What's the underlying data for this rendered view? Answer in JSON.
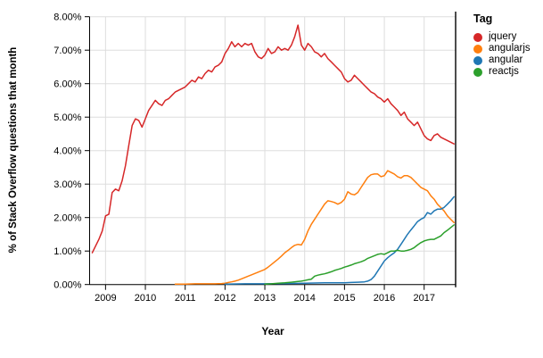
{
  "chart_data": {
    "type": "line",
    "title": "",
    "xlabel": "Year",
    "ylabel": "% of Stack Overflow questions that month",
    "legend_title": "Tag",
    "legend_position": "right",
    "grid": true,
    "background": "#ffffff",
    "grid_color": "#dddddd",
    "axis_color": "#000000",
    "x_domain": [
      2008.6,
      2017.79
    ],
    "y_domain": [
      0,
      8
    ],
    "x_ticks": [
      {
        "v": 2009,
        "label": "2009"
      },
      {
        "v": 2010,
        "label": "2010"
      },
      {
        "v": 2011,
        "label": "2011"
      },
      {
        "v": 2012,
        "label": "2012"
      },
      {
        "v": 2013,
        "label": "2013"
      },
      {
        "v": 2014,
        "label": "2014"
      },
      {
        "v": 2015,
        "label": "2015"
      },
      {
        "v": 2016,
        "label": "2016"
      },
      {
        "v": 2017,
        "label": "2017"
      }
    ],
    "y_ticks": [
      {
        "v": 0,
        "label": "0.00%"
      },
      {
        "v": 1,
        "label": "1.00%"
      },
      {
        "v": 2,
        "label": "2.00%"
      },
      {
        "v": 3,
        "label": "3.00%"
      },
      {
        "v": 4,
        "label": "4.00%"
      },
      {
        "v": 5,
        "label": "5.00%"
      },
      {
        "v": 6,
        "label": "6.00%"
      },
      {
        "v": 7,
        "label": "7.00%"
      },
      {
        "v": 8,
        "label": "8.00%"
      }
    ],
    "series": [
      {
        "name": "jquery",
        "color": "#d62728",
        "points": [
          [
            2008.667,
            0.95
          ],
          [
            2008.75,
            1.15
          ],
          [
            2008.833,
            1.35
          ],
          [
            2008.917,
            1.6
          ],
          [
            2009.0,
            2.05
          ],
          [
            2009.083,
            2.1
          ],
          [
            2009.167,
            2.75
          ],
          [
            2009.25,
            2.85
          ],
          [
            2009.333,
            2.8
          ],
          [
            2009.417,
            3.1
          ],
          [
            2009.5,
            3.55
          ],
          [
            2009.583,
            4.15
          ],
          [
            2009.667,
            4.75
          ],
          [
            2009.75,
            4.95
          ],
          [
            2009.833,
            4.9
          ],
          [
            2009.917,
            4.7
          ],
          [
            2010.0,
            4.95
          ],
          [
            2010.083,
            5.2
          ],
          [
            2010.167,
            5.35
          ],
          [
            2010.25,
            5.5
          ],
          [
            2010.333,
            5.4
          ],
          [
            2010.417,
            5.35
          ],
          [
            2010.5,
            5.5
          ],
          [
            2010.583,
            5.55
          ],
          [
            2010.667,
            5.65
          ],
          [
            2010.75,
            5.75
          ],
          [
            2010.833,
            5.8
          ],
          [
            2010.917,
            5.85
          ],
          [
            2011.0,
            5.9
          ],
          [
            2011.083,
            6.0
          ],
          [
            2011.167,
            6.1
          ],
          [
            2011.25,
            6.05
          ],
          [
            2011.333,
            6.2
          ],
          [
            2011.417,
            6.15
          ],
          [
            2011.5,
            6.3
          ],
          [
            2011.583,
            6.4
          ],
          [
            2011.667,
            6.35
          ],
          [
            2011.75,
            6.5
          ],
          [
            2011.833,
            6.55
          ],
          [
            2011.917,
            6.65
          ],
          [
            2012.0,
            6.9
          ],
          [
            2012.083,
            7.05
          ],
          [
            2012.167,
            7.25
          ],
          [
            2012.25,
            7.1
          ],
          [
            2012.333,
            7.2
          ],
          [
            2012.417,
            7.1
          ],
          [
            2012.5,
            7.2
          ],
          [
            2012.583,
            7.15
          ],
          [
            2012.667,
            7.2
          ],
          [
            2012.75,
            6.95
          ],
          [
            2012.833,
            6.8
          ],
          [
            2012.917,
            6.75
          ],
          [
            2013.0,
            6.85
          ],
          [
            2013.083,
            7.05
          ],
          [
            2013.167,
            6.9
          ],
          [
            2013.25,
            6.95
          ],
          [
            2013.333,
            7.1
          ],
          [
            2013.417,
            7.0
          ],
          [
            2013.5,
            7.05
          ],
          [
            2013.583,
            7.0
          ],
          [
            2013.667,
            7.15
          ],
          [
            2013.75,
            7.4
          ],
          [
            2013.833,
            7.75
          ],
          [
            2013.917,
            7.15
          ],
          [
            2014.0,
            7.0
          ],
          [
            2014.083,
            7.2
          ],
          [
            2014.167,
            7.1
          ],
          [
            2014.25,
            6.95
          ],
          [
            2014.333,
            6.9
          ],
          [
            2014.417,
            6.8
          ],
          [
            2014.5,
            6.9
          ],
          [
            2014.583,
            6.75
          ],
          [
            2014.667,
            6.65
          ],
          [
            2014.75,
            6.55
          ],
          [
            2014.833,
            6.45
          ],
          [
            2014.917,
            6.35
          ],
          [
            2015.0,
            6.15
          ],
          [
            2015.083,
            6.05
          ],
          [
            2015.167,
            6.1
          ],
          [
            2015.25,
            6.25
          ],
          [
            2015.333,
            6.15
          ],
          [
            2015.417,
            6.05
          ],
          [
            2015.5,
            5.95
          ],
          [
            2015.583,
            5.85
          ],
          [
            2015.667,
            5.75
          ],
          [
            2015.75,
            5.7
          ],
          [
            2015.833,
            5.6
          ],
          [
            2015.917,
            5.55
          ],
          [
            2016.0,
            5.45
          ],
          [
            2016.083,
            5.55
          ],
          [
            2016.167,
            5.4
          ],
          [
            2016.25,
            5.3
          ],
          [
            2016.333,
            5.2
          ],
          [
            2016.417,
            5.05
          ],
          [
            2016.5,
            5.15
          ],
          [
            2016.583,
            4.95
          ],
          [
            2016.667,
            4.85
          ],
          [
            2016.75,
            4.75
          ],
          [
            2016.833,
            4.85
          ],
          [
            2016.917,
            4.65
          ],
          [
            2017.0,
            4.45
          ],
          [
            2017.083,
            4.35
          ],
          [
            2017.167,
            4.3
          ],
          [
            2017.25,
            4.45
          ],
          [
            2017.333,
            4.5
          ],
          [
            2017.417,
            4.4
          ],
          [
            2017.5,
            4.35
          ],
          [
            2017.583,
            4.3
          ],
          [
            2017.667,
            4.25
          ],
          [
            2017.75,
            4.2
          ]
        ]
      },
      {
        "name": "angularjs",
        "color": "#ff7f0e",
        "points": [
          [
            2010.75,
            0.01
          ],
          [
            2011.0,
            0.01
          ],
          [
            2011.25,
            0.02
          ],
          [
            2011.5,
            0.02
          ],
          [
            2011.75,
            0.02
          ],
          [
            2011.917,
            0.03
          ],
          [
            2012.0,
            0.04
          ],
          [
            2012.083,
            0.06
          ],
          [
            2012.167,
            0.08
          ],
          [
            2012.25,
            0.1
          ],
          [
            2012.333,
            0.13
          ],
          [
            2012.417,
            0.17
          ],
          [
            2012.5,
            0.21
          ],
          [
            2012.583,
            0.25
          ],
          [
            2012.667,
            0.29
          ],
          [
            2012.75,
            0.33
          ],
          [
            2012.833,
            0.37
          ],
          [
            2012.917,
            0.41
          ],
          [
            2013.0,
            0.45
          ],
          [
            2013.083,
            0.52
          ],
          [
            2013.167,
            0.6
          ],
          [
            2013.25,
            0.68
          ],
          [
            2013.333,
            0.76
          ],
          [
            2013.417,
            0.85
          ],
          [
            2013.5,
            0.95
          ],
          [
            2013.583,
            1.02
          ],
          [
            2013.667,
            1.1
          ],
          [
            2013.75,
            1.17
          ],
          [
            2013.833,
            1.2
          ],
          [
            2013.917,
            1.18
          ],
          [
            2014.0,
            1.35
          ],
          [
            2014.083,
            1.6
          ],
          [
            2014.167,
            1.8
          ],
          [
            2014.25,
            1.95
          ],
          [
            2014.333,
            2.1
          ],
          [
            2014.417,
            2.25
          ],
          [
            2014.5,
            2.4
          ],
          [
            2014.583,
            2.5
          ],
          [
            2014.667,
            2.48
          ],
          [
            2014.75,
            2.45
          ],
          [
            2014.833,
            2.4
          ],
          [
            2014.917,
            2.45
          ],
          [
            2015.0,
            2.55
          ],
          [
            2015.083,
            2.77
          ],
          [
            2015.167,
            2.7
          ],
          [
            2015.25,
            2.68
          ],
          [
            2015.333,
            2.75
          ],
          [
            2015.417,
            2.9
          ],
          [
            2015.5,
            3.05
          ],
          [
            2015.583,
            3.2
          ],
          [
            2015.667,
            3.28
          ],
          [
            2015.75,
            3.3
          ],
          [
            2015.833,
            3.3
          ],
          [
            2015.917,
            3.22
          ],
          [
            2016.0,
            3.25
          ],
          [
            2016.083,
            3.4
          ],
          [
            2016.167,
            3.35
          ],
          [
            2016.25,
            3.3
          ],
          [
            2016.333,
            3.22
          ],
          [
            2016.417,
            3.18
          ],
          [
            2016.5,
            3.25
          ],
          [
            2016.583,
            3.25
          ],
          [
            2016.667,
            3.2
          ],
          [
            2016.75,
            3.1
          ],
          [
            2016.833,
            3.0
          ],
          [
            2016.917,
            2.9
          ],
          [
            2017.0,
            2.85
          ],
          [
            2017.083,
            2.8
          ],
          [
            2017.167,
            2.65
          ],
          [
            2017.25,
            2.55
          ],
          [
            2017.333,
            2.4
          ],
          [
            2017.417,
            2.3
          ],
          [
            2017.5,
            2.2
          ],
          [
            2017.583,
            2.05
          ],
          [
            2017.667,
            1.95
          ],
          [
            2017.75,
            1.85
          ]
        ]
      },
      {
        "name": "angular",
        "color": "#1f77b4",
        "points": [
          [
            2012.0,
            0.01
          ],
          [
            2012.5,
            0.02
          ],
          [
            2013.0,
            0.02
          ],
          [
            2013.5,
            0.03
          ],
          [
            2014.0,
            0.04
          ],
          [
            2014.5,
            0.05
          ],
          [
            2015.0,
            0.05
          ],
          [
            2015.167,
            0.06
          ],
          [
            2015.333,
            0.07
          ],
          [
            2015.5,
            0.08
          ],
          [
            2015.583,
            0.1
          ],
          [
            2015.667,
            0.15
          ],
          [
            2015.75,
            0.25
          ],
          [
            2015.833,
            0.4
          ],
          [
            2015.917,
            0.55
          ],
          [
            2016.0,
            0.7
          ],
          [
            2016.083,
            0.8
          ],
          [
            2016.167,
            0.88
          ],
          [
            2016.25,
            0.95
          ],
          [
            2016.333,
            1.05
          ],
          [
            2016.417,
            1.2
          ],
          [
            2016.5,
            1.35
          ],
          [
            2016.583,
            1.5
          ],
          [
            2016.667,
            1.63
          ],
          [
            2016.75,
            1.75
          ],
          [
            2016.833,
            1.88
          ],
          [
            2016.917,
            1.95
          ],
          [
            2017.0,
            2.0
          ],
          [
            2017.083,
            2.15
          ],
          [
            2017.167,
            2.1
          ],
          [
            2017.25,
            2.2
          ],
          [
            2017.333,
            2.25
          ],
          [
            2017.417,
            2.25
          ],
          [
            2017.5,
            2.3
          ],
          [
            2017.583,
            2.4
          ],
          [
            2017.667,
            2.5
          ],
          [
            2017.75,
            2.62
          ]
        ]
      },
      {
        "name": "reactjs",
        "color": "#2ca02c",
        "points": [
          [
            2013.0,
            0.01
          ],
          [
            2013.167,
            0.02
          ],
          [
            2013.333,
            0.04
          ],
          [
            2013.5,
            0.05
          ],
          [
            2013.667,
            0.07
          ],
          [
            2013.833,
            0.09
          ],
          [
            2013.917,
            0.1
          ],
          [
            2014.0,
            0.12
          ],
          [
            2014.083,
            0.14
          ],
          [
            2014.167,
            0.16
          ],
          [
            2014.25,
            0.25
          ],
          [
            2014.333,
            0.28
          ],
          [
            2014.417,
            0.3
          ],
          [
            2014.5,
            0.32
          ],
          [
            2014.583,
            0.35
          ],
          [
            2014.667,
            0.38
          ],
          [
            2014.75,
            0.42
          ],
          [
            2014.833,
            0.45
          ],
          [
            2014.917,
            0.48
          ],
          [
            2015.0,
            0.52
          ],
          [
            2015.083,
            0.55
          ],
          [
            2015.167,
            0.58
          ],
          [
            2015.25,
            0.62
          ],
          [
            2015.333,
            0.65
          ],
          [
            2015.417,
            0.68
          ],
          [
            2015.5,
            0.72
          ],
          [
            2015.583,
            0.78
          ],
          [
            2015.667,
            0.82
          ],
          [
            2015.75,
            0.86
          ],
          [
            2015.833,
            0.9
          ],
          [
            2015.917,
            0.92
          ],
          [
            2016.0,
            0.9
          ],
          [
            2016.083,
            0.95
          ],
          [
            2016.167,
            1.0
          ],
          [
            2016.25,
            1.0
          ],
          [
            2016.333,
            1.02
          ],
          [
            2016.417,
            1.0
          ],
          [
            2016.5,
            1.0
          ],
          [
            2016.583,
            1.02
          ],
          [
            2016.667,
            1.05
          ],
          [
            2016.75,
            1.1
          ],
          [
            2016.833,
            1.18
          ],
          [
            2016.917,
            1.25
          ],
          [
            2017.0,
            1.3
          ],
          [
            2017.083,
            1.33
          ],
          [
            2017.167,
            1.35
          ],
          [
            2017.25,
            1.35
          ],
          [
            2017.333,
            1.4
          ],
          [
            2017.417,
            1.45
          ],
          [
            2017.5,
            1.55
          ],
          [
            2017.583,
            1.62
          ],
          [
            2017.667,
            1.7
          ],
          [
            2017.75,
            1.78
          ]
        ]
      }
    ]
  }
}
